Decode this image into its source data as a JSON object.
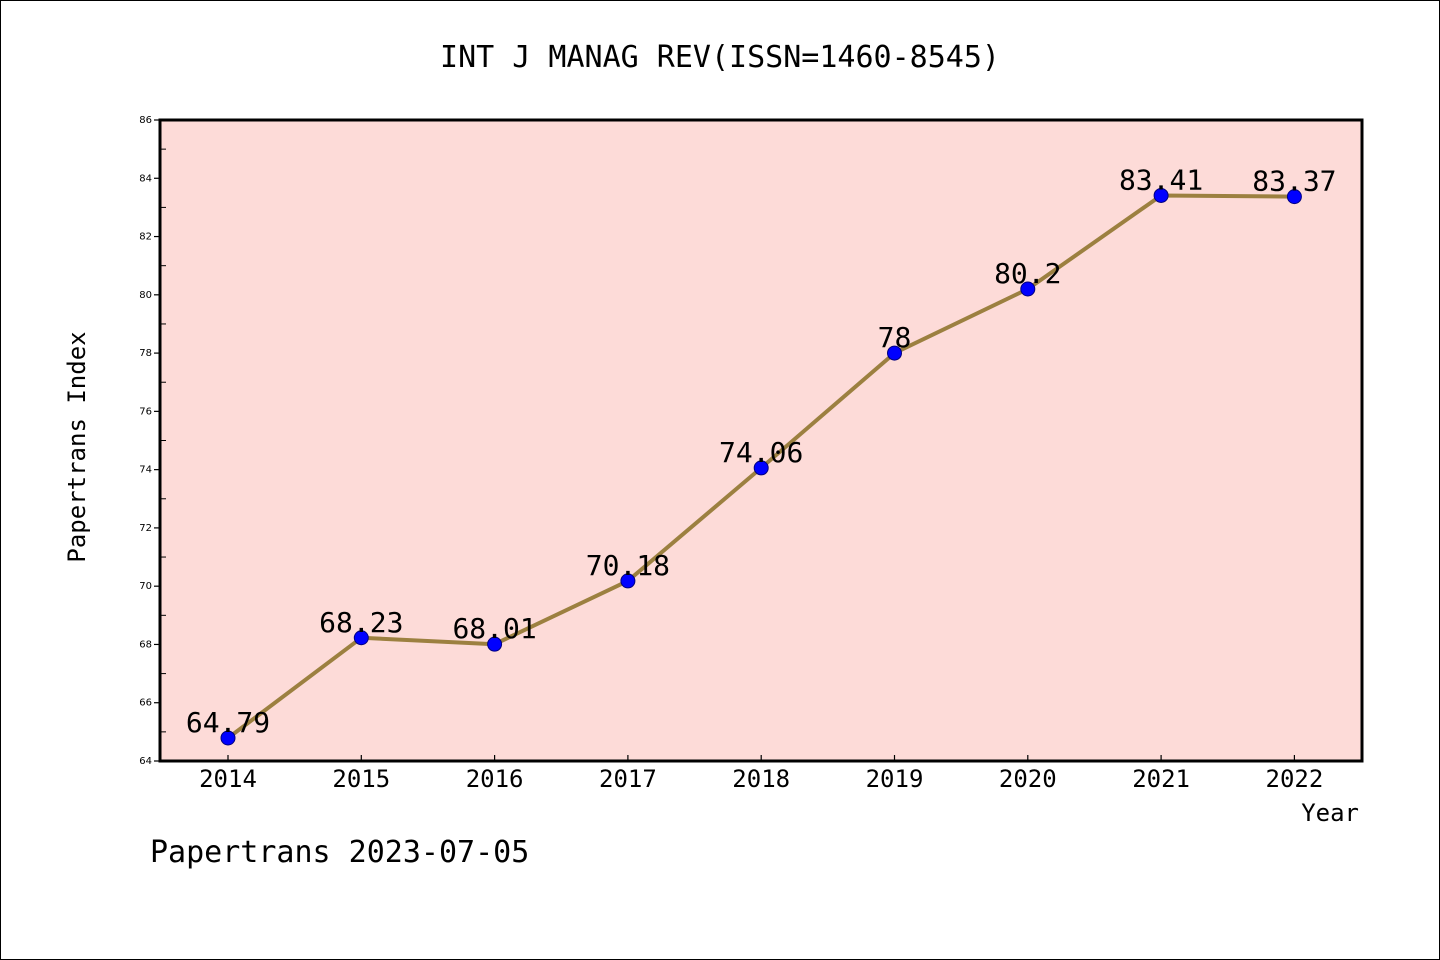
{
  "chart_data": {
    "type": "line",
    "title": "INT J MANAG REV(ISSN=1460-8545)",
    "xlabel": "Year",
    "ylabel": "Papertrans Index",
    "categories": [
      "2014",
      "2015",
      "2016",
      "2017",
      "2018",
      "2019",
      "2020",
      "2021",
      "2022"
    ],
    "series": [
      {
        "values": [
          64.79,
          68.23,
          68.01,
          70.18,
          74.06,
          78,
          80.2,
          83.41,
          83.37
        ],
        "labels": [
          "64.79",
          "68.23",
          "68.01",
          "70.18",
          "74.06",
          "78",
          "80.2",
          "83.41",
          "83.37"
        ]
      }
    ],
    "ylim": [
      64,
      86
    ],
    "yticks": [
      "64",
      "66",
      "68",
      "70",
      "72",
      "74",
      "76",
      "78",
      "80",
      "82",
      "84",
      "86"
    ],
    "grid": false,
    "legend": "none",
    "colors": {
      "plot_background": "#fddbd8",
      "line": "#9c8040",
      "marker": "#0000ff",
      "marker_edge": "#000080",
      "axes": "#000000"
    }
  },
  "footer": {
    "text": "Papertrans 2023-07-05"
  }
}
